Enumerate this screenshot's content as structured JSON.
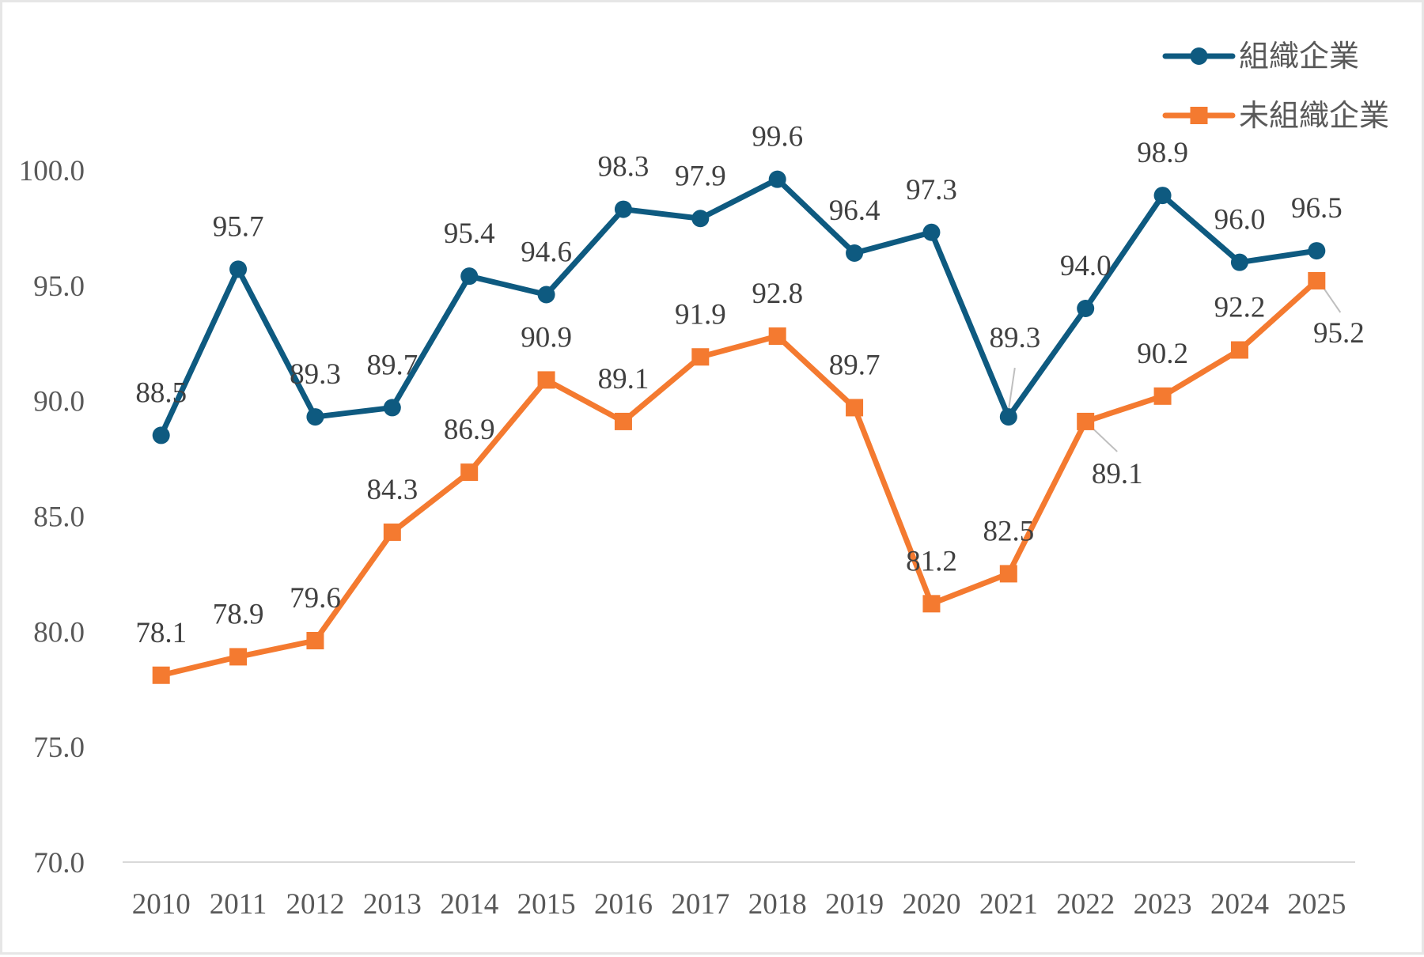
{
  "chart_data": {
    "type": "line",
    "title": "",
    "xlabel": "",
    "ylabel": "",
    "categories": [
      "2010",
      "2011",
      "2012",
      "2013",
      "2014",
      "2015",
      "2016",
      "2017",
      "2018",
      "2019",
      "2020",
      "2021",
      "2022",
      "2023",
      "2024",
      "2025"
    ],
    "ylim": [
      70.0,
      100.0
    ],
    "yticks": [
      "70.0",
      "75.0",
      "80.0",
      "85.0",
      "90.0",
      "95.0",
      "100.0"
    ],
    "grid": false,
    "legend_position": "top-right",
    "series": [
      {
        "name": "組織企業",
        "color": "#0e5a80",
        "marker": "circle",
        "values": [
          88.5,
          95.7,
          89.3,
          89.7,
          95.4,
          94.6,
          98.3,
          97.9,
          99.6,
          96.4,
          97.3,
          89.3,
          94.0,
          98.9,
          96.0,
          96.5
        ],
        "labels": [
          "88.5",
          "95.7",
          "89.3",
          "89.7",
          "95.4",
          "94.6",
          "98.3",
          "97.9",
          "99.6",
          "96.4",
          "97.3",
          "89.3",
          "94.0",
          "98.9",
          "96.0",
          "96.5"
        ]
      },
      {
        "name": "未組織企業",
        "color": "#f47a30",
        "marker": "square",
        "values": [
          78.1,
          78.9,
          79.6,
          84.3,
          86.9,
          90.9,
          89.1,
          91.9,
          92.8,
          89.7,
          81.2,
          82.5,
          89.1,
          90.2,
          92.2,
          95.2
        ],
        "labels": [
          "78.1",
          "78.9",
          "79.6",
          "84.3",
          "86.9",
          "90.9",
          "89.1",
          "91.9",
          "92.8",
          "89.7",
          "81.2",
          "82.5",
          "89.1",
          "90.2",
          "92.2",
          "95.2"
        ]
      }
    ]
  }
}
